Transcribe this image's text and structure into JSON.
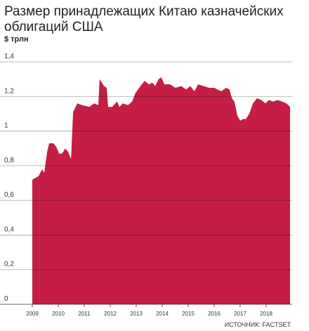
{
  "chart_data": {
    "type": "area",
    "title": "Размер принадлежащих Китаю казначейских облигаций США",
    "subtitle": "$ трлн",
    "source": "ИСТОЧНИК: FACTSET",
    "color": "#c41e45",
    "grid": true,
    "x": [
      2009.0,
      2009.24,
      2009.38,
      2009.46,
      2009.57,
      2009.65,
      2009.81,
      2009.92,
      2010.03,
      2010.14,
      2010.27,
      2010.38,
      2010.49,
      2010.57,
      2010.73,
      2010.92,
      2011.19,
      2011.38,
      2011.54,
      2011.59,
      2011.76,
      2011.86,
      2011.92,
      2012.08,
      2012.19,
      2012.27,
      2012.35,
      2012.49,
      2012.68,
      2012.84,
      2012.97,
      2013.16,
      2013.32,
      2013.49,
      2013.62,
      2013.73,
      2013.86,
      2013.97,
      2014.08,
      2014.3,
      2014.51,
      2014.73,
      2014.92,
      2015.08,
      2015.24,
      2015.38,
      2015.59,
      2015.81,
      2016.0,
      2016.27,
      2016.46,
      2016.59,
      2016.68,
      2016.78,
      2016.89,
      2017.0,
      2017.11,
      2017.22,
      2017.35,
      2017.49,
      2017.65,
      2017.81,
      2017.97,
      2018.11,
      2018.27,
      2018.43,
      2018.62,
      2018.78,
      2018.92
    ],
    "values": [
      0.72,
      0.74,
      0.78,
      0.76,
      0.88,
      0.93,
      0.93,
      0.91,
      0.87,
      0.87,
      0.9,
      0.88,
      0.84,
      1.11,
      1.16,
      1.15,
      1.14,
      1.16,
      1.15,
      1.3,
      1.26,
      1.25,
      1.14,
      1.14,
      1.16,
      1.17,
      1.14,
      1.16,
      1.15,
      1.17,
      1.22,
      1.26,
      1.29,
      1.27,
      1.28,
      1.26,
      1.3,
      1.31,
      1.27,
      1.27,
      1.25,
      1.26,
      1.24,
      1.26,
      1.23,
      1.27,
      1.26,
      1.25,
      1.25,
      1.23,
      1.25,
      1.24,
      1.19,
      1.17,
      1.09,
      1.06,
      1.07,
      1.07,
      1.1,
      1.16,
      1.19,
      1.18,
      1.16,
      1.18,
      1.17,
      1.18,
      1.17,
      1.16,
      1.14
    ],
    "xlim": [
      2008.5,
      2019.0
    ],
    "xticks": [
      2009,
      2010,
      2011,
      2012,
      2013,
      2014,
      2015,
      2016,
      2017,
      2018
    ],
    "ylim": [
      0,
      1.4
    ],
    "yticks": [
      0,
      {
        "value": 0.2,
        "label": "0,2"
      },
      {
        "value": 0.4,
        "label": "0,4"
      },
      {
        "value": 0.6,
        "label": "0,6"
      },
      {
        "value": 0.8,
        "label": "0,8"
      },
      1,
      {
        "value": 1.2,
        "label": "1,2"
      },
      {
        "value": 1.4,
        "label": "1,4"
      }
    ]
  }
}
